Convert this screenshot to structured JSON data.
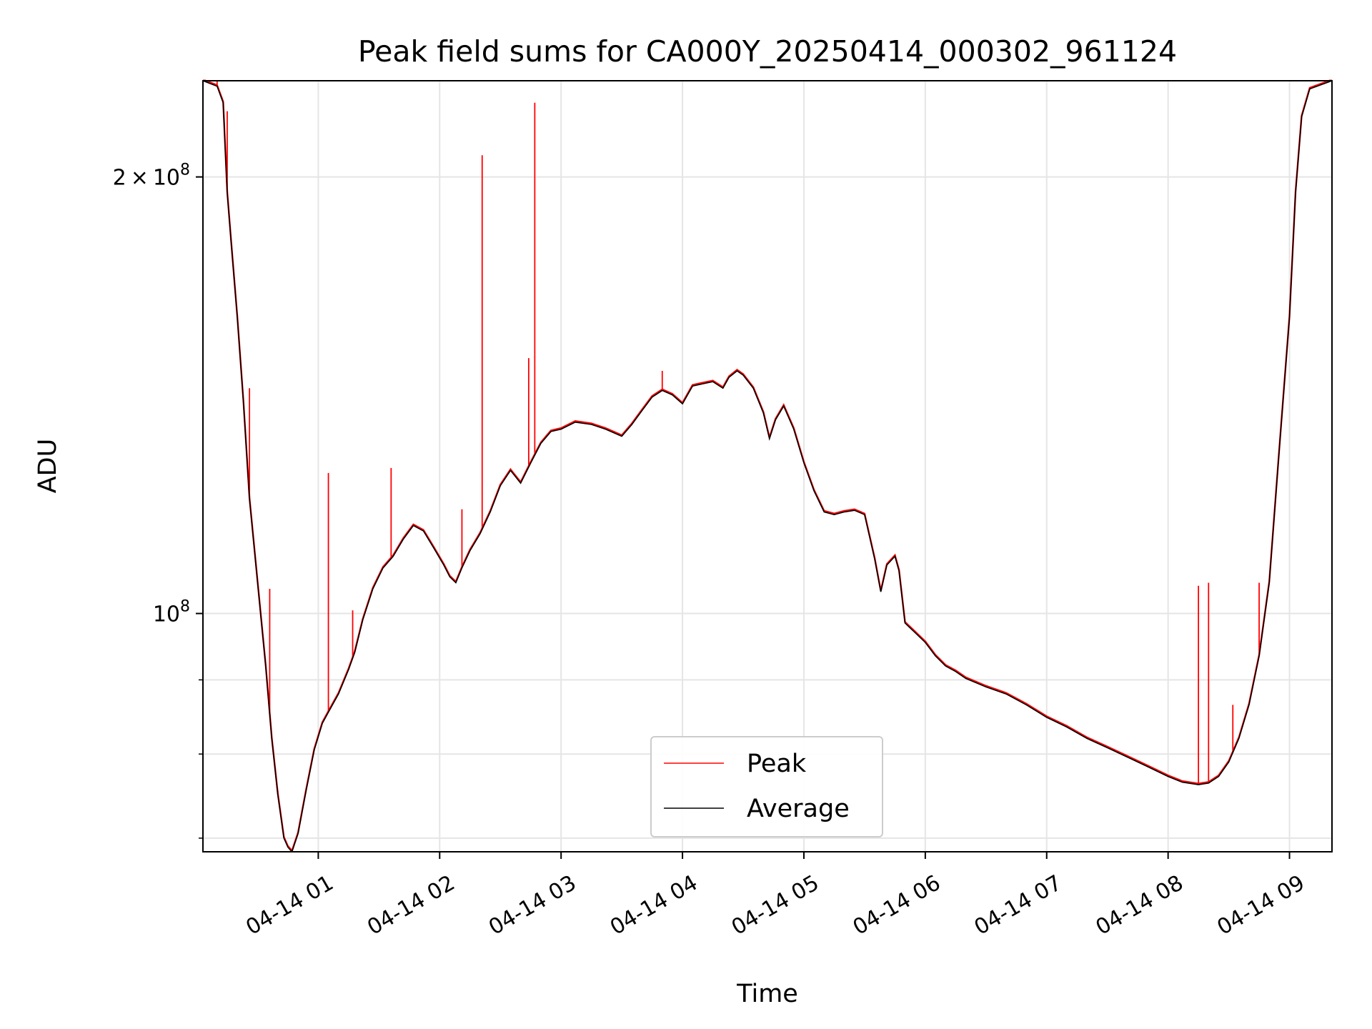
{
  "chart_data": {
    "type": "line",
    "title": "Peak field sums for CA000Y_20250414_000302_961124",
    "xlabel": "Time",
    "ylabel": "ADU",
    "y_scale": "log",
    "grid": true,
    "legend_position": "lower center",
    "xlim": [
      "2025-04-14T00:03",
      "2025-04-14T09:21"
    ],
    "ylim": [
      68500000,
      233000000
    ],
    "x_ticks": [
      {
        "time": "2025-04-14T01:00",
        "label": "04-14 01"
      },
      {
        "time": "2025-04-14T02:00",
        "label": "04-14 02"
      },
      {
        "time": "2025-04-14T03:00",
        "label": "04-14 03"
      },
      {
        "time": "2025-04-14T04:00",
        "label": "04-14 04"
      },
      {
        "time": "2025-04-14T05:00",
        "label": "04-14 05"
      },
      {
        "time": "2025-04-14T06:00",
        "label": "04-14 06"
      },
      {
        "time": "2025-04-14T07:00",
        "label": "04-14 07"
      },
      {
        "time": "2025-04-14T08:00",
        "label": "04-14 08"
      },
      {
        "time": "2025-04-14T09:00",
        "label": "04-14 09"
      }
    ],
    "y_major_ticks": [
      {
        "value": 100000000,
        "base": "10",
        "exp": "8"
      },
      {
        "value": 200000000,
        "mant": "2",
        "base": "10",
        "exp": "8"
      }
    ],
    "y_minor_ticks": [
      70000000,
      80000000,
      90000000
    ],
    "series": [
      {
        "name": "Average",
        "color": "#000000",
        "points": [
          [
            "2025-04-14T00:03",
            233000000
          ],
          [
            "2025-04-14T00:10",
            231000000
          ],
          [
            "2025-04-14T00:13",
            225000000
          ],
          [
            "2025-04-14T00:15",
            195000000
          ],
          [
            "2025-04-14T00:17",
            180000000
          ],
          [
            "2025-04-14T00:20",
            160000000
          ],
          [
            "2025-04-14T00:23",
            140000000
          ],
          [
            "2025-04-14T00:26",
            120000000
          ],
          [
            "2025-04-14T00:30",
            105000000
          ],
          [
            "2025-04-14T00:34",
            92000000
          ],
          [
            "2025-04-14T00:37",
            82000000
          ],
          [
            "2025-04-14T00:40",
            75000000
          ],
          [
            "2025-04-14T00:43",
            70000000
          ],
          [
            "2025-04-14T00:45",
            69000000
          ],
          [
            "2025-04-14T00:47",
            68500000
          ],
          [
            "2025-04-14T00:50",
            70500000
          ],
          [
            "2025-04-14T00:54",
            75500000
          ],
          [
            "2025-04-14T00:58",
            80500000
          ],
          [
            "2025-04-14T01:02",
            84000000
          ],
          [
            "2025-04-14T01:05",
            85500000
          ],
          [
            "2025-04-14T01:10",
            88000000
          ],
          [
            "2025-04-14T01:15",
            91500000
          ],
          [
            "2025-04-14T01:18",
            94000000
          ],
          [
            "2025-04-14T01:22",
            99000000
          ],
          [
            "2025-04-14T01:27",
            104000000
          ],
          [
            "2025-04-14T01:32",
            107500000
          ],
          [
            "2025-04-14T01:37",
            109500000
          ],
          [
            "2025-04-14T01:42",
            112500000
          ],
          [
            "2025-04-14T01:47",
            115000000
          ],
          [
            "2025-04-14T01:52",
            114000000
          ],
          [
            "2025-04-14T01:57",
            111000000
          ],
          [
            "2025-04-14T02:02",
            108000000
          ],
          [
            "2025-04-14T02:05",
            106000000
          ],
          [
            "2025-04-14T02:08",
            105000000
          ],
          [
            "2025-04-14T02:11",
            107500000
          ],
          [
            "2025-04-14T02:15",
            110500000
          ],
          [
            "2025-04-14T02:20",
            113500000
          ],
          [
            "2025-04-14T02:25",
            117500000
          ],
          [
            "2025-04-14T02:30",
            122500000
          ],
          [
            "2025-04-14T02:35",
            125500000
          ],
          [
            "2025-04-14T02:40",
            123000000
          ],
          [
            "2025-04-14T02:45",
            127000000
          ],
          [
            "2025-04-14T02:50",
            131000000
          ],
          [
            "2025-04-14T02:55",
            133500000
          ],
          [
            "2025-04-14T03:00",
            134000000
          ],
          [
            "2025-04-14T03:07",
            135500000
          ],
          [
            "2025-04-14T03:15",
            135000000
          ],
          [
            "2025-04-14T03:22",
            134000000
          ],
          [
            "2025-04-14T03:30",
            132500000
          ],
          [
            "2025-04-14T03:35",
            135000000
          ],
          [
            "2025-04-14T03:40",
            138000000
          ],
          [
            "2025-04-14T03:45",
            141000000
          ],
          [
            "2025-04-14T03:50",
            142500000
          ],
          [
            "2025-04-14T03:55",
            141500000
          ],
          [
            "2025-04-14T04:00",
            139500000
          ],
          [
            "2025-04-14T04:05",
            143500000
          ],
          [
            "2025-04-14T04:10",
            144000000
          ],
          [
            "2025-04-14T04:15",
            144500000
          ],
          [
            "2025-04-14T04:20",
            143000000
          ],
          [
            "2025-04-14T04:23",
            145500000
          ],
          [
            "2025-04-14T04:27",
            147000000
          ],
          [
            "2025-04-14T04:30",
            146000000
          ],
          [
            "2025-04-14T04:35",
            143000000
          ],
          [
            "2025-04-14T04:40",
            137500000
          ],
          [
            "2025-04-14T04:43",
            132000000
          ],
          [
            "2025-04-14T04:46",
            136000000
          ],
          [
            "2025-04-14T04:50",
            139000000
          ],
          [
            "2025-04-14T04:55",
            134000000
          ],
          [
            "2025-04-14T05:00",
            127000000
          ],
          [
            "2025-04-14T05:05",
            121500000
          ],
          [
            "2025-04-14T05:10",
            117500000
          ],
          [
            "2025-04-14T05:15",
            117000000
          ],
          [
            "2025-04-14T05:20",
            117500000
          ],
          [
            "2025-04-14T05:25",
            117800000
          ],
          [
            "2025-04-14T05:30",
            117000000
          ],
          [
            "2025-04-14T05:35",
            109000000
          ],
          [
            "2025-04-14T05:38",
            103500000
          ],
          [
            "2025-04-14T05:41",
            108000000
          ],
          [
            "2025-04-14T05:45",
            109500000
          ],
          [
            "2025-04-14T05:47",
            107000000
          ],
          [
            "2025-04-14T05:50",
            98500000
          ],
          [
            "2025-04-14T05:55",
            97000000
          ],
          [
            "2025-04-14T06:00",
            95500000
          ],
          [
            "2025-04-14T06:05",
            93500000
          ],
          [
            "2025-04-14T06:10",
            92000000
          ],
          [
            "2025-04-14T06:15",
            91200000
          ],
          [
            "2025-04-14T06:20",
            90200000
          ],
          [
            "2025-04-14T06:30",
            89000000
          ],
          [
            "2025-04-14T06:40",
            88000000
          ],
          [
            "2025-04-14T06:50",
            86500000
          ],
          [
            "2025-04-14T07:00",
            84800000
          ],
          [
            "2025-04-14T07:10",
            83500000
          ],
          [
            "2025-04-14T07:20",
            82000000
          ],
          [
            "2025-04-14T07:30",
            80800000
          ],
          [
            "2025-04-14T07:40",
            79600000
          ],
          [
            "2025-04-14T07:50",
            78400000
          ],
          [
            "2025-04-14T08:00",
            77200000
          ],
          [
            "2025-04-14T08:07",
            76500000
          ],
          [
            "2025-04-14T08:15",
            76200000
          ],
          [
            "2025-04-14T08:20",
            76400000
          ],
          [
            "2025-04-14T08:25",
            77200000
          ],
          [
            "2025-04-14T08:30",
            79000000
          ],
          [
            "2025-04-14T08:35",
            82000000
          ],
          [
            "2025-04-14T08:40",
            86500000
          ],
          [
            "2025-04-14T08:45",
            93500000
          ],
          [
            "2025-04-14T08:50",
            105000000
          ],
          [
            "2025-04-14T08:55",
            130000000
          ],
          [
            "2025-04-14T09:00",
            160000000
          ],
          [
            "2025-04-14T09:03",
            195000000
          ],
          [
            "2025-04-14T09:06",
            220000000
          ],
          [
            "2025-04-14T09:10",
            230000000
          ],
          [
            "2025-04-14T09:21",
            233000000
          ]
        ]
      },
      {
        "name": "Peak",
        "color": "#ff0000",
        "spikes": [
          [
            "2025-04-14T00:10",
            233000000
          ],
          [
            "2025-04-14T00:15",
            222000000
          ],
          [
            "2025-04-14T00:26",
            143000000
          ],
          [
            "2025-04-14T00:36",
            104000000
          ],
          [
            "2025-04-14T00:40",
            75500000
          ],
          [
            "2025-04-14T01:05",
            125000000
          ],
          [
            "2025-04-14T01:17",
            100500000
          ],
          [
            "2025-04-14T01:36",
            126000000
          ],
          [
            "2025-04-14T02:11",
            118000000
          ],
          [
            "2025-04-14T02:21",
            207000000
          ],
          [
            "2025-04-14T02:44",
            150000000
          ],
          [
            "2025-04-14T02:47",
            225000000
          ],
          [
            "2025-04-14T03:50",
            147000000
          ],
          [
            "2025-04-14T08:15",
            104500000
          ],
          [
            "2025-04-14T08:20",
            105000000
          ],
          [
            "2025-04-14T08:32",
            86500000
          ],
          [
            "2025-04-14T08:45",
            105000000
          ]
        ]
      }
    ]
  }
}
